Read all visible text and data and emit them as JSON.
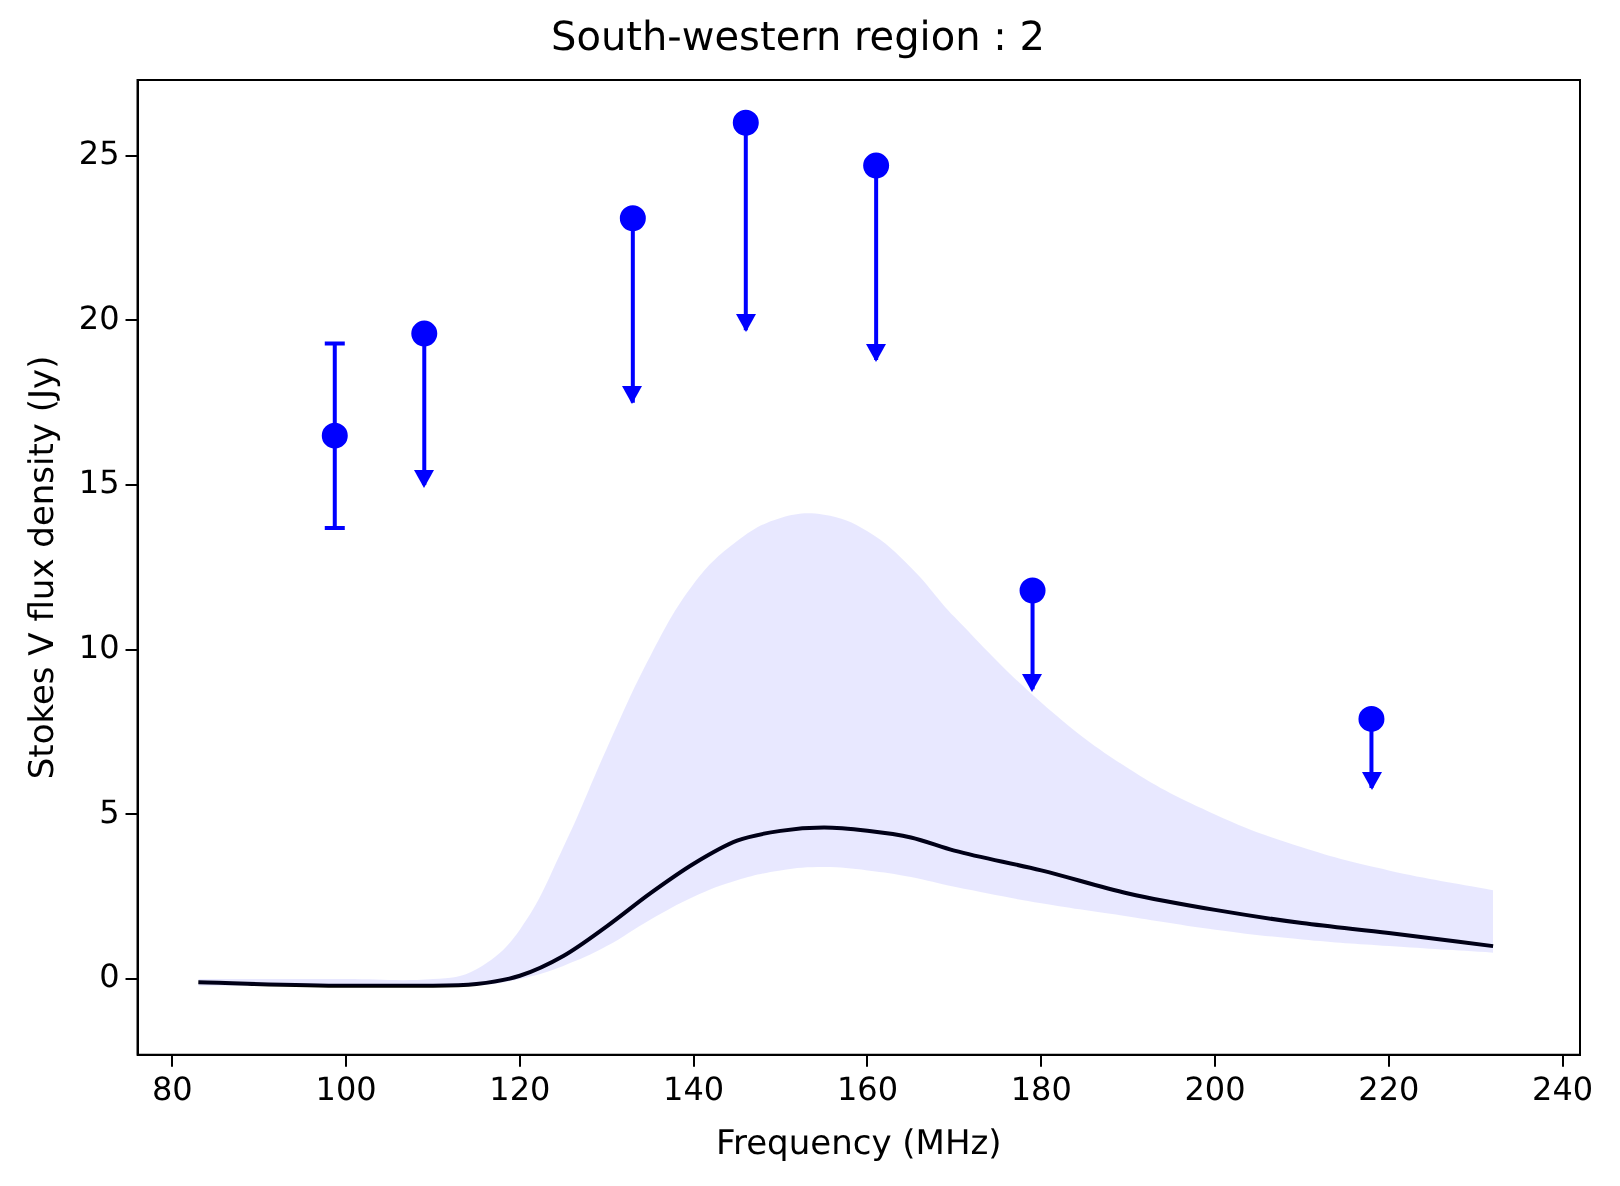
{
  "chart_data": {
    "type": "scatter",
    "title": "South-western region : 2",
    "xlabel": "Frequency (MHz)",
    "ylabel": "Stokes V flux density (Jy)",
    "xlim": [
      76,
      242
    ],
    "ylim": [
      -2.3,
      27.3
    ],
    "xticks": [
      80,
      100,
      120,
      140,
      160,
      180,
      200,
      220,
      240
    ],
    "yticks": [
      0,
      5,
      10,
      15,
      20,
      25
    ],
    "grid": false,
    "legend": false,
    "series": [
      {
        "type": "line",
        "color": "#000000",
        "marker": "none",
        "line_style": "solid",
        "x": [
          83,
          100,
          110,
          115,
          120,
          125,
          130,
          135,
          140,
          145,
          150,
          155,
          160,
          165,
          170,
          180,
          190,
          200,
          210,
          220,
          232
        ],
        "values": [
          -0.1,
          -0.2,
          -0.2,
          -0.15,
          0.1,
          0.7,
          1.6,
          2.6,
          3.5,
          4.2,
          4.5,
          4.6,
          4.5,
          4.3,
          3.9,
          3.3,
          2.6,
          2.1,
          1.7,
          1.4,
          1.0
        ],
        "lower": [
          -0.2,
          -0.2,
          -0.2,
          -0.2,
          0,
          0.4,
          1,
          1.8,
          2.5,
          3,
          3.3,
          3.4,
          3.3,
          3.1,
          2.8,
          2.3,
          1.9,
          1.5,
          1.2,
          1.0,
          0.8
        ],
        "upper": [
          0,
          0,
          0,
          0.3,
          1.5,
          4,
          7,
          9.8,
          12,
          13.3,
          14,
          14.1,
          13.6,
          12.5,
          11,
          8.4,
          6.4,
          5,
          4,
          3.3,
          2.7
        ]
      },
      {
        "type": "scatter",
        "color": "#0000ff",
        "marker": "circle",
        "x": [
          98.7,
          109,
          133,
          146,
          161,
          179,
          218
        ],
        "values": [
          16.5,
          19.6,
          23.1,
          26.0,
          24.7,
          11.8,
          7.9
        ],
        "errors": [
          2.8,
          [
            15.0,
            19.6
          ],
          [
            17.5,
            23.1
          ],
          [
            19.7,
            26.0
          ],
          [
            18.8,
            24.7
          ],
          [
            8.8,
            11.8
          ],
          [
            5.8,
            7.9
          ]
        ]
      }
    ]
  }
}
